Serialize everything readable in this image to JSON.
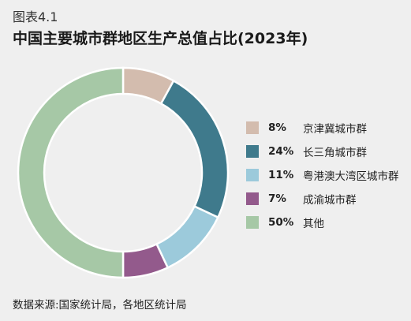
{
  "figure_label": "图表4.1",
  "title": "中国主要城市群地区生产总值占比(2023年)",
  "source": "数据来源:国家统计局，各地区统计局",
  "chart_data": {
    "type": "pie",
    "donut": true,
    "legend_position": "right",
    "categories": [
      "京津冀城市群",
      "长三角城市群",
      "粤港澳大湾区城市群",
      "成渝城市群",
      "其他"
    ],
    "values": [
      8,
      24,
      11,
      7,
      50
    ],
    "labels": [
      "8%",
      "24%",
      "11%",
      "7%",
      "50%"
    ],
    "colors": [
      "#d3bcae",
      "#3f7a8c",
      "#9ccadb",
      "#935a8c",
      "#a6c8a6"
    ]
  }
}
